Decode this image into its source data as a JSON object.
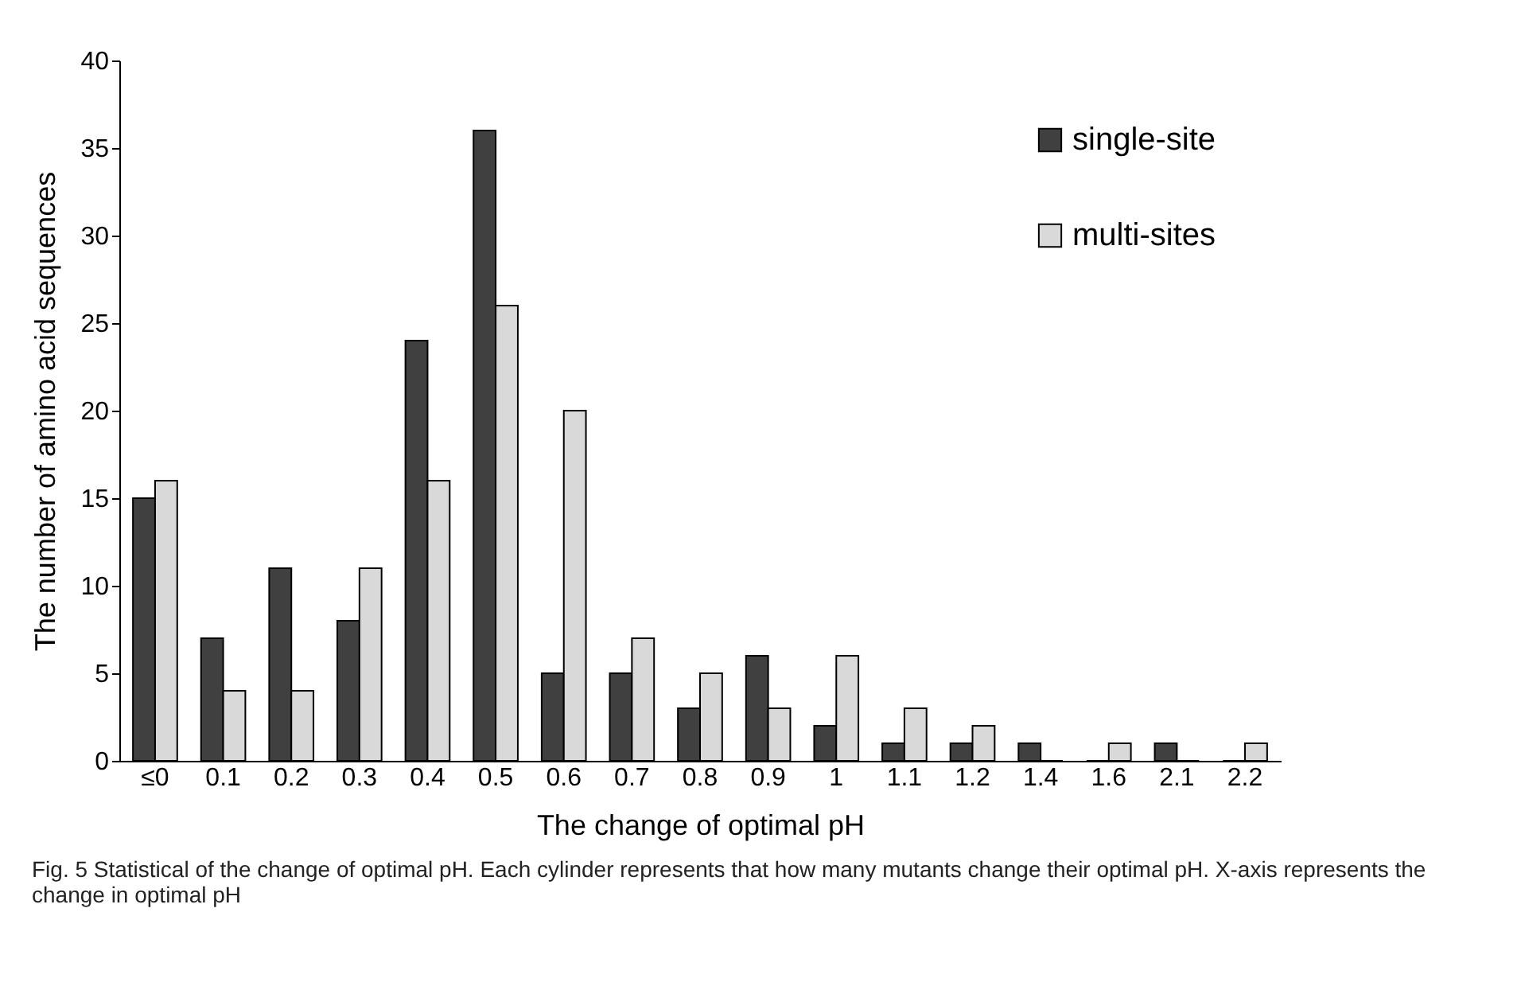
{
  "chart_data": {
    "type": "bar",
    "xlabel": "The change of optimal pH",
    "ylabel": "The number of amino acid sequences",
    "categories": [
      "≤0",
      "0.1",
      "0.2",
      "0.3",
      "0.4",
      "0.5",
      "0.6",
      "0.7",
      "0.8",
      "0.9",
      "1",
      "1.1",
      "1.2",
      "1.4",
      "1.6",
      "2.1",
      "2.2"
    ],
    "series": [
      {
        "name": "single-site",
        "color": "#404040",
        "values": [
          15,
          7,
          11,
          8,
          24,
          36,
          5,
          5,
          3,
          6,
          2,
          1,
          1,
          1,
          0,
          1,
          0
        ]
      },
      {
        "name": "multi-sites",
        "color": "#d9d9d9",
        "values": [
          16,
          4,
          4,
          11,
          16,
          26,
          20,
          7,
          5,
          3,
          6,
          3,
          2,
          0,
          1,
          0,
          1
        ]
      }
    ],
    "ylim": [
      0,
      40
    ],
    "yticks": [
      0,
      5,
      10,
      15,
      20,
      25,
      30,
      35,
      40
    ],
    "grid": false,
    "legend": "top right",
    "annotations": [
      "Fig. 5 Statistical of the change of optimal pH. Each cylinder represents that how many mutants change their optimal pH. X-axis represents the change in optimal pH"
    ]
  }
}
